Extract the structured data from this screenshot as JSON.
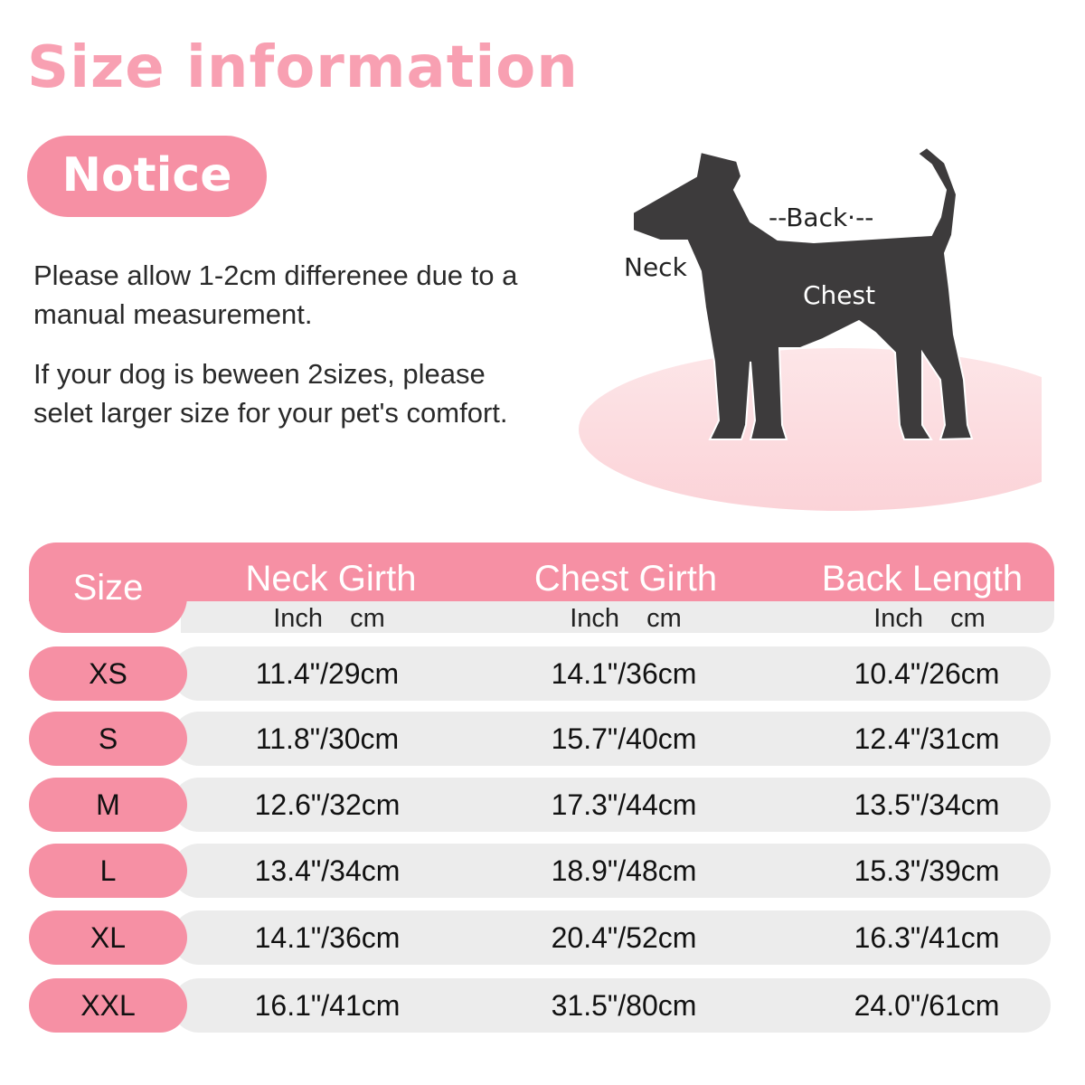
{
  "title": "Size information",
  "notice_label": "Notice",
  "paragraphs": [
    "Please allow 1-2cm differenee due to a manual measurement.",
    "If your dog is beween 2sizes, please selet larger size for your pet's comfort."
  ],
  "diagram": {
    "labels": {
      "neck": "Neck",
      "back": "--Back·--",
      "chest": "Chest"
    }
  },
  "colors": {
    "accent": "#f690a4",
    "title": "#f8a0b2",
    "row_bg": "#ececec",
    "dog": "#3d3b3c"
  },
  "table": {
    "size_header": "Size",
    "columns": [
      {
        "label": "Neck Girth",
        "units": "Inch cm"
      },
      {
        "label": "Chest Girth",
        "units": "Inch cm"
      },
      {
        "label": "Back Length",
        "units": "Inch cm"
      }
    ],
    "rows": [
      {
        "size": "XS",
        "values": [
          "11.4\"/29cm",
          "14.1\"/36cm",
          "10.4\"/26cm"
        ]
      },
      {
        "size": "S",
        "values": [
          "11.8\"/30cm",
          "15.7\"/40cm",
          "12.4\"/31cm"
        ]
      },
      {
        "size": "M",
        "values": [
          "12.6\"/32cm",
          "17.3\"/44cm",
          "13.5\"/34cm"
        ]
      },
      {
        "size": "L",
        "values": [
          "13.4\"/34cm",
          "18.9\"/48cm",
          "15.3\"/39cm"
        ]
      },
      {
        "size": "XL",
        "values": [
          "14.1\"/36cm",
          "20.4\"/52cm",
          "16.3\"/41cm"
        ]
      },
      {
        "size": "XXL",
        "values": [
          "16.1\"/41cm",
          "31.5\"/80cm",
          "24.0\"/61cm"
        ]
      }
    ]
  }
}
